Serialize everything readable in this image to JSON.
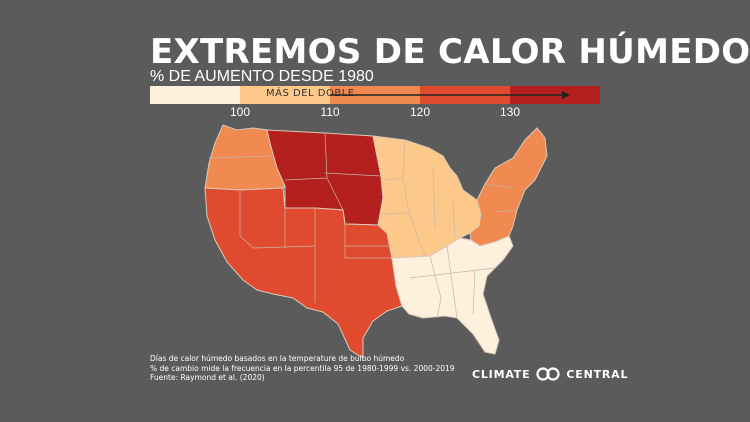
{
  "title": "EXTREMOS DE CALOR HÚMEDO",
  "subtitle": "% DE AUMENTO DESDE 1980",
  "legend": {
    "note": "MÁS DEL DOBLE",
    "ticks": [
      "100",
      "110",
      "120",
      "130"
    ],
    "colors": [
      "#fdf0dc",
      "#fcc98a",
      "#f08a50",
      "#e04a2e",
      "#b3201e"
    ],
    "arrow_color": "#222222"
  },
  "map": {
    "regions": [
      {
        "name": "pacific-northwest",
        "level": "110-120",
        "color": "#f08a50"
      },
      {
        "name": "northern-plains",
        "level": "130+",
        "color": "#b3201e"
      },
      {
        "name": "southwest-and-south-central",
        "level": "120-130",
        "color": "#e04a2e"
      },
      {
        "name": "midwest",
        "level": "100-110",
        "color": "#fcc98a"
      },
      {
        "name": "northeast",
        "level": "110-120",
        "color": "#f08a50"
      },
      {
        "name": "southeast",
        "level": "<100",
        "color": "#fdf0dc"
      }
    ],
    "border_color": "#d9c9b8",
    "state_line_color": "#c9b6a3"
  },
  "footnote": {
    "line1": "Días de calor húmedo basados en la temperature de bulbo húmedo",
    "line2": "% de cambio mide la frecuencia en la percentila 95 de 1980-1999 vs. 2000-2019",
    "line3": "Fuente: Raymond et al. (2020)"
  },
  "logo": {
    "left": "CLIMATE",
    "right": "CENTRAL"
  }
}
